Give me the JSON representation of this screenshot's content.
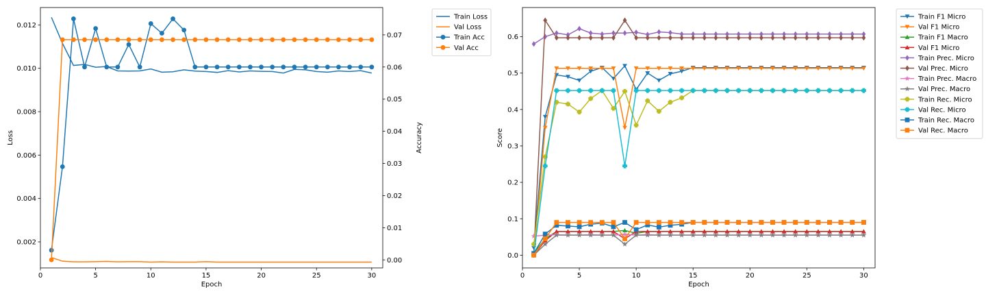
{
  "chart_data": [
    {
      "type": "line",
      "xlabel": "Epoch",
      "ylabel": "Loss",
      "ylabel_right": "Accuracy",
      "xlim": [
        0,
        31
      ],
      "ylim": [
        0.0008,
        0.0128
      ],
      "ylim_right": [
        -0.0025,
        0.0785
      ],
      "x_ticks": [
        0,
        5,
        10,
        15,
        20,
        25,
        30
      ],
      "y_ticks": [
        0.002,
        0.004,
        0.006,
        0.008,
        0.01,
        0.012
      ],
      "y_tick_labels": [
        "0.002",
        "0.004",
        "0.006",
        "0.008",
        "0.010",
        "0.012"
      ],
      "y_right_ticks": [
        0.0,
        0.01,
        0.02,
        0.03,
        0.04,
        0.05,
        0.06,
        0.07
      ],
      "y_right_tick_labels": [
        "0.00",
        "0.01",
        "0.02",
        "0.03",
        "0.04",
        "0.05",
        "0.06",
        "0.07"
      ],
      "legend_position": "outside right",
      "x": [
        1,
        2,
        3,
        4,
        5,
        6,
        7,
        8,
        9,
        10,
        11,
        12,
        13,
        14,
        15,
        16,
        17,
        18,
        19,
        20,
        21,
        22,
        23,
        24,
        25,
        26,
        27,
        28,
        29,
        30
      ],
      "series": [
        {
          "name": "Train Loss",
          "axis": "left",
          "color": "#1f77b4",
          "marker": "none",
          "values": [
            0.01235,
            0.01115,
            0.01013,
            0.01018,
            0.01005,
            0.01008,
            0.00988,
            0.00987,
            0.00988,
            0.00997,
            0.00982,
            0.00984,
            0.00993,
            0.00987,
            0.00985,
            0.00981,
            0.00989,
            0.00983,
            0.00988,
            0.00986,
            0.00985,
            0.00978,
            0.00995,
            0.00993,
            0.00985,
            0.00982,
            0.00988,
            0.00985,
            0.00989,
            0.00978
          ]
        },
        {
          "name": "Val Loss",
          "axis": "left",
          "color": "#ff7f0e",
          "marker": "none",
          "values": [
            0.00128,
            0.00111,
            0.00108,
            0.00108,
            0.00109,
            0.0011,
            0.00108,
            0.00109,
            0.00109,
            0.00107,
            0.00108,
            0.00107,
            0.00107,
            0.00107,
            0.00109,
            0.00107,
            0.00107,
            0.00107,
            0.00107,
            0.00107,
            0.00107,
            0.00107,
            0.00107,
            0.00107,
            0.00107,
            0.00107,
            0.00107,
            0.00107,
            0.00107,
            0.00107
          ]
        },
        {
          "name": "Train Acc",
          "axis": "right",
          "color": "#1f77b4",
          "marker": "circle",
          "values": [
            0.003,
            0.029,
            0.075,
            0.06,
            0.072,
            0.06,
            0.06,
            0.067,
            0.06,
            0.0735,
            0.0705,
            0.075,
            0.0715,
            0.06,
            0.06,
            0.06,
            0.06,
            0.06,
            0.06,
            0.06,
            0.06,
            0.06,
            0.06,
            0.06,
            0.06,
            0.06,
            0.06,
            0.06,
            0.06,
            0.06
          ]
        },
        {
          "name": "Val Acc",
          "axis": "right",
          "color": "#ff7f0e",
          "marker": "circle",
          "values": [
            0.0,
            0.0685,
            0.0685,
            0.0685,
            0.0685,
            0.0685,
            0.0685,
            0.0685,
            0.0685,
            0.0685,
            0.0685,
            0.0685,
            0.0685,
            0.0685,
            0.0685,
            0.0685,
            0.0685,
            0.0685,
            0.0685,
            0.0685,
            0.0685,
            0.0685,
            0.0685,
            0.0685,
            0.0685,
            0.0685,
            0.0685,
            0.0685,
            0.0685,
            0.0685
          ]
        }
      ]
    },
    {
      "type": "line",
      "xlabel": "Epoch",
      "ylabel": "Score",
      "xlim": [
        0,
        31
      ],
      "ylim": [
        -0.035,
        0.68
      ],
      "x_ticks": [
        0,
        5,
        10,
        15,
        20,
        25,
        30
      ],
      "y_ticks": [
        0.0,
        0.1,
        0.2,
        0.3,
        0.4,
        0.5,
        0.6
      ],
      "y_tick_labels": [
        "0.0",
        "0.1",
        "0.2",
        "0.3",
        "0.4",
        "0.5",
        "0.6"
      ],
      "legend_position": "outside right",
      "x": [
        1,
        2,
        3,
        4,
        5,
        6,
        7,
        8,
        9,
        10,
        11,
        12,
        13,
        14,
        15,
        16,
        17,
        18,
        19,
        20,
        21,
        22,
        23,
        24,
        25,
        26,
        27,
        28,
        29,
        30
      ],
      "series": [
        {
          "name": "Train F1 Micro",
          "color": "#1f77b4",
          "marker": "tri-down",
          "values": [
            0.02,
            0.38,
            0.495,
            0.49,
            0.48,
            0.505,
            0.515,
            0.485,
            0.52,
            0.455,
            0.5,
            0.48,
            0.498,
            0.505,
            0.515,
            0.515,
            0.515,
            0.515,
            0.515,
            0.515,
            0.515,
            0.515,
            0.515,
            0.515,
            0.515,
            0.515,
            0.515,
            0.515,
            0.515,
            0.515
          ]
        },
        {
          "name": "Val F1 Micro",
          "color": "#ff7f0e",
          "marker": "tri-down",
          "values": [
            0.0,
            0.35,
            0.513,
            0.513,
            0.513,
            0.513,
            0.513,
            0.513,
            0.35,
            0.513,
            0.513,
            0.513,
            0.513,
            0.513,
            0.513,
            0.513,
            0.513,
            0.513,
            0.513,
            0.513,
            0.513,
            0.513,
            0.513,
            0.513,
            0.513,
            0.513,
            0.513,
            0.513,
            0.513,
            0.513
          ]
        },
        {
          "name": "Train F1 Macro",
          "color": "#2ca02c",
          "marker": "tri-up",
          "values": [
            0.005,
            0.045,
            0.065,
            0.065,
            0.065,
            0.065,
            0.065,
            0.065,
            0.068,
            0.06,
            0.065,
            0.065,
            0.065,
            0.065,
            0.065,
            0.065,
            0.065,
            0.065,
            0.065,
            0.065,
            0.065,
            0.065,
            0.065,
            0.065,
            0.065,
            0.065,
            0.065,
            0.065,
            0.065,
            0.065
          ]
        },
        {
          "name": "Val F1 Micro",
          "color": "#d62728",
          "marker": "tri-up",
          "values": [
            0.0,
            0.04,
            0.065,
            0.065,
            0.065,
            0.065,
            0.065,
            0.065,
            0.045,
            0.065,
            0.065,
            0.065,
            0.065,
            0.065,
            0.065,
            0.065,
            0.065,
            0.065,
            0.065,
            0.065,
            0.065,
            0.065,
            0.065,
            0.065,
            0.065,
            0.065,
            0.065,
            0.065,
            0.065,
            0.065
          ]
        },
        {
          "name": "Train Prec. Micro",
          "color": "#9467bd",
          "marker": "diamond",
          "values": [
            0.58,
            0.6,
            0.61,
            0.605,
            0.622,
            0.61,
            0.607,
            0.61,
            0.61,
            0.612,
            0.606,
            0.613,
            0.611,
            0.607,
            0.607,
            0.607,
            0.607,
            0.607,
            0.607,
            0.607,
            0.607,
            0.607,
            0.607,
            0.607,
            0.607,
            0.607,
            0.607,
            0.607,
            0.607,
            0.607
          ]
        },
        {
          "name": "Val Prec. Micro",
          "color": "#8c564b",
          "marker": "diamond",
          "values": [
            0.0,
            0.645,
            0.597,
            0.597,
            0.597,
            0.597,
            0.597,
            0.597,
            0.645,
            0.597,
            0.597,
            0.597,
            0.597,
            0.597,
            0.597,
            0.597,
            0.597,
            0.597,
            0.597,
            0.597,
            0.597,
            0.597,
            0.597,
            0.597,
            0.597,
            0.597,
            0.597,
            0.597,
            0.597,
            0.597
          ]
        },
        {
          "name": "Train Prec. Macro",
          "color": "#e377c2",
          "marker": "star",
          "values": [
            0.052,
            0.055,
            0.056,
            0.055,
            0.055,
            0.056,
            0.055,
            0.055,
            0.057,
            0.055,
            0.056,
            0.055,
            0.055,
            0.055,
            0.055,
            0.055,
            0.055,
            0.055,
            0.055,
            0.055,
            0.055,
            0.055,
            0.055,
            0.055,
            0.055,
            0.055,
            0.055,
            0.055,
            0.055,
            0.055
          ]
        },
        {
          "name": "Val Prec. Macro",
          "color": "#7f7f7f",
          "marker": "star",
          "values": [
            0.0,
            0.03,
            0.055,
            0.055,
            0.055,
            0.055,
            0.055,
            0.055,
            0.03,
            0.055,
            0.055,
            0.055,
            0.055,
            0.055,
            0.055,
            0.055,
            0.055,
            0.055,
            0.055,
            0.055,
            0.055,
            0.055,
            0.055,
            0.055,
            0.055,
            0.055,
            0.055,
            0.055,
            0.055,
            0.055
          ]
        },
        {
          "name": "Train Rec. Micro",
          "color": "#bcbd22",
          "marker": "plus",
          "values": [
            0.03,
            0.27,
            0.42,
            0.415,
            0.393,
            0.43,
            0.452,
            0.403,
            0.45,
            0.357,
            0.424,
            0.395,
            0.42,
            0.432,
            0.452,
            0.452,
            0.452,
            0.452,
            0.452,
            0.452,
            0.452,
            0.452,
            0.452,
            0.452,
            0.452,
            0.452,
            0.452,
            0.452,
            0.452,
            0.452
          ]
        },
        {
          "name": "Val Rec. Micro",
          "color": "#17becf",
          "marker": "plus",
          "values": [
            0.0,
            0.245,
            0.452,
            0.452,
            0.452,
            0.452,
            0.452,
            0.452,
            0.245,
            0.452,
            0.452,
            0.452,
            0.452,
            0.452,
            0.452,
            0.452,
            0.452,
            0.452,
            0.452,
            0.452,
            0.452,
            0.452,
            0.452,
            0.452,
            0.452,
            0.452,
            0.452,
            0.452,
            0.452,
            0.452
          ]
        },
        {
          "name": "Train Rec. Macro",
          "color": "#1f77b4",
          "marker": "square",
          "values": [
            0.005,
            0.058,
            0.082,
            0.08,
            0.078,
            0.085,
            0.088,
            0.078,
            0.09,
            0.07,
            0.083,
            0.077,
            0.082,
            0.085,
            0.09,
            0.09,
            0.09,
            0.09,
            0.09,
            0.09,
            0.09,
            0.09,
            0.09,
            0.09,
            0.09,
            0.09,
            0.09,
            0.09,
            0.09,
            0.09
          ]
        },
        {
          "name": "Val Rec. Macro",
          "color": "#ff7f0e",
          "marker": "square",
          "values": [
            0.0,
            0.045,
            0.09,
            0.09,
            0.09,
            0.09,
            0.09,
            0.09,
            0.045,
            0.09,
            0.09,
            0.09,
            0.09,
            0.09,
            0.09,
            0.09,
            0.09,
            0.09,
            0.09,
            0.09,
            0.09,
            0.09,
            0.09,
            0.09,
            0.09,
            0.09,
            0.09,
            0.09,
            0.09,
            0.09
          ]
        }
      ]
    }
  ]
}
